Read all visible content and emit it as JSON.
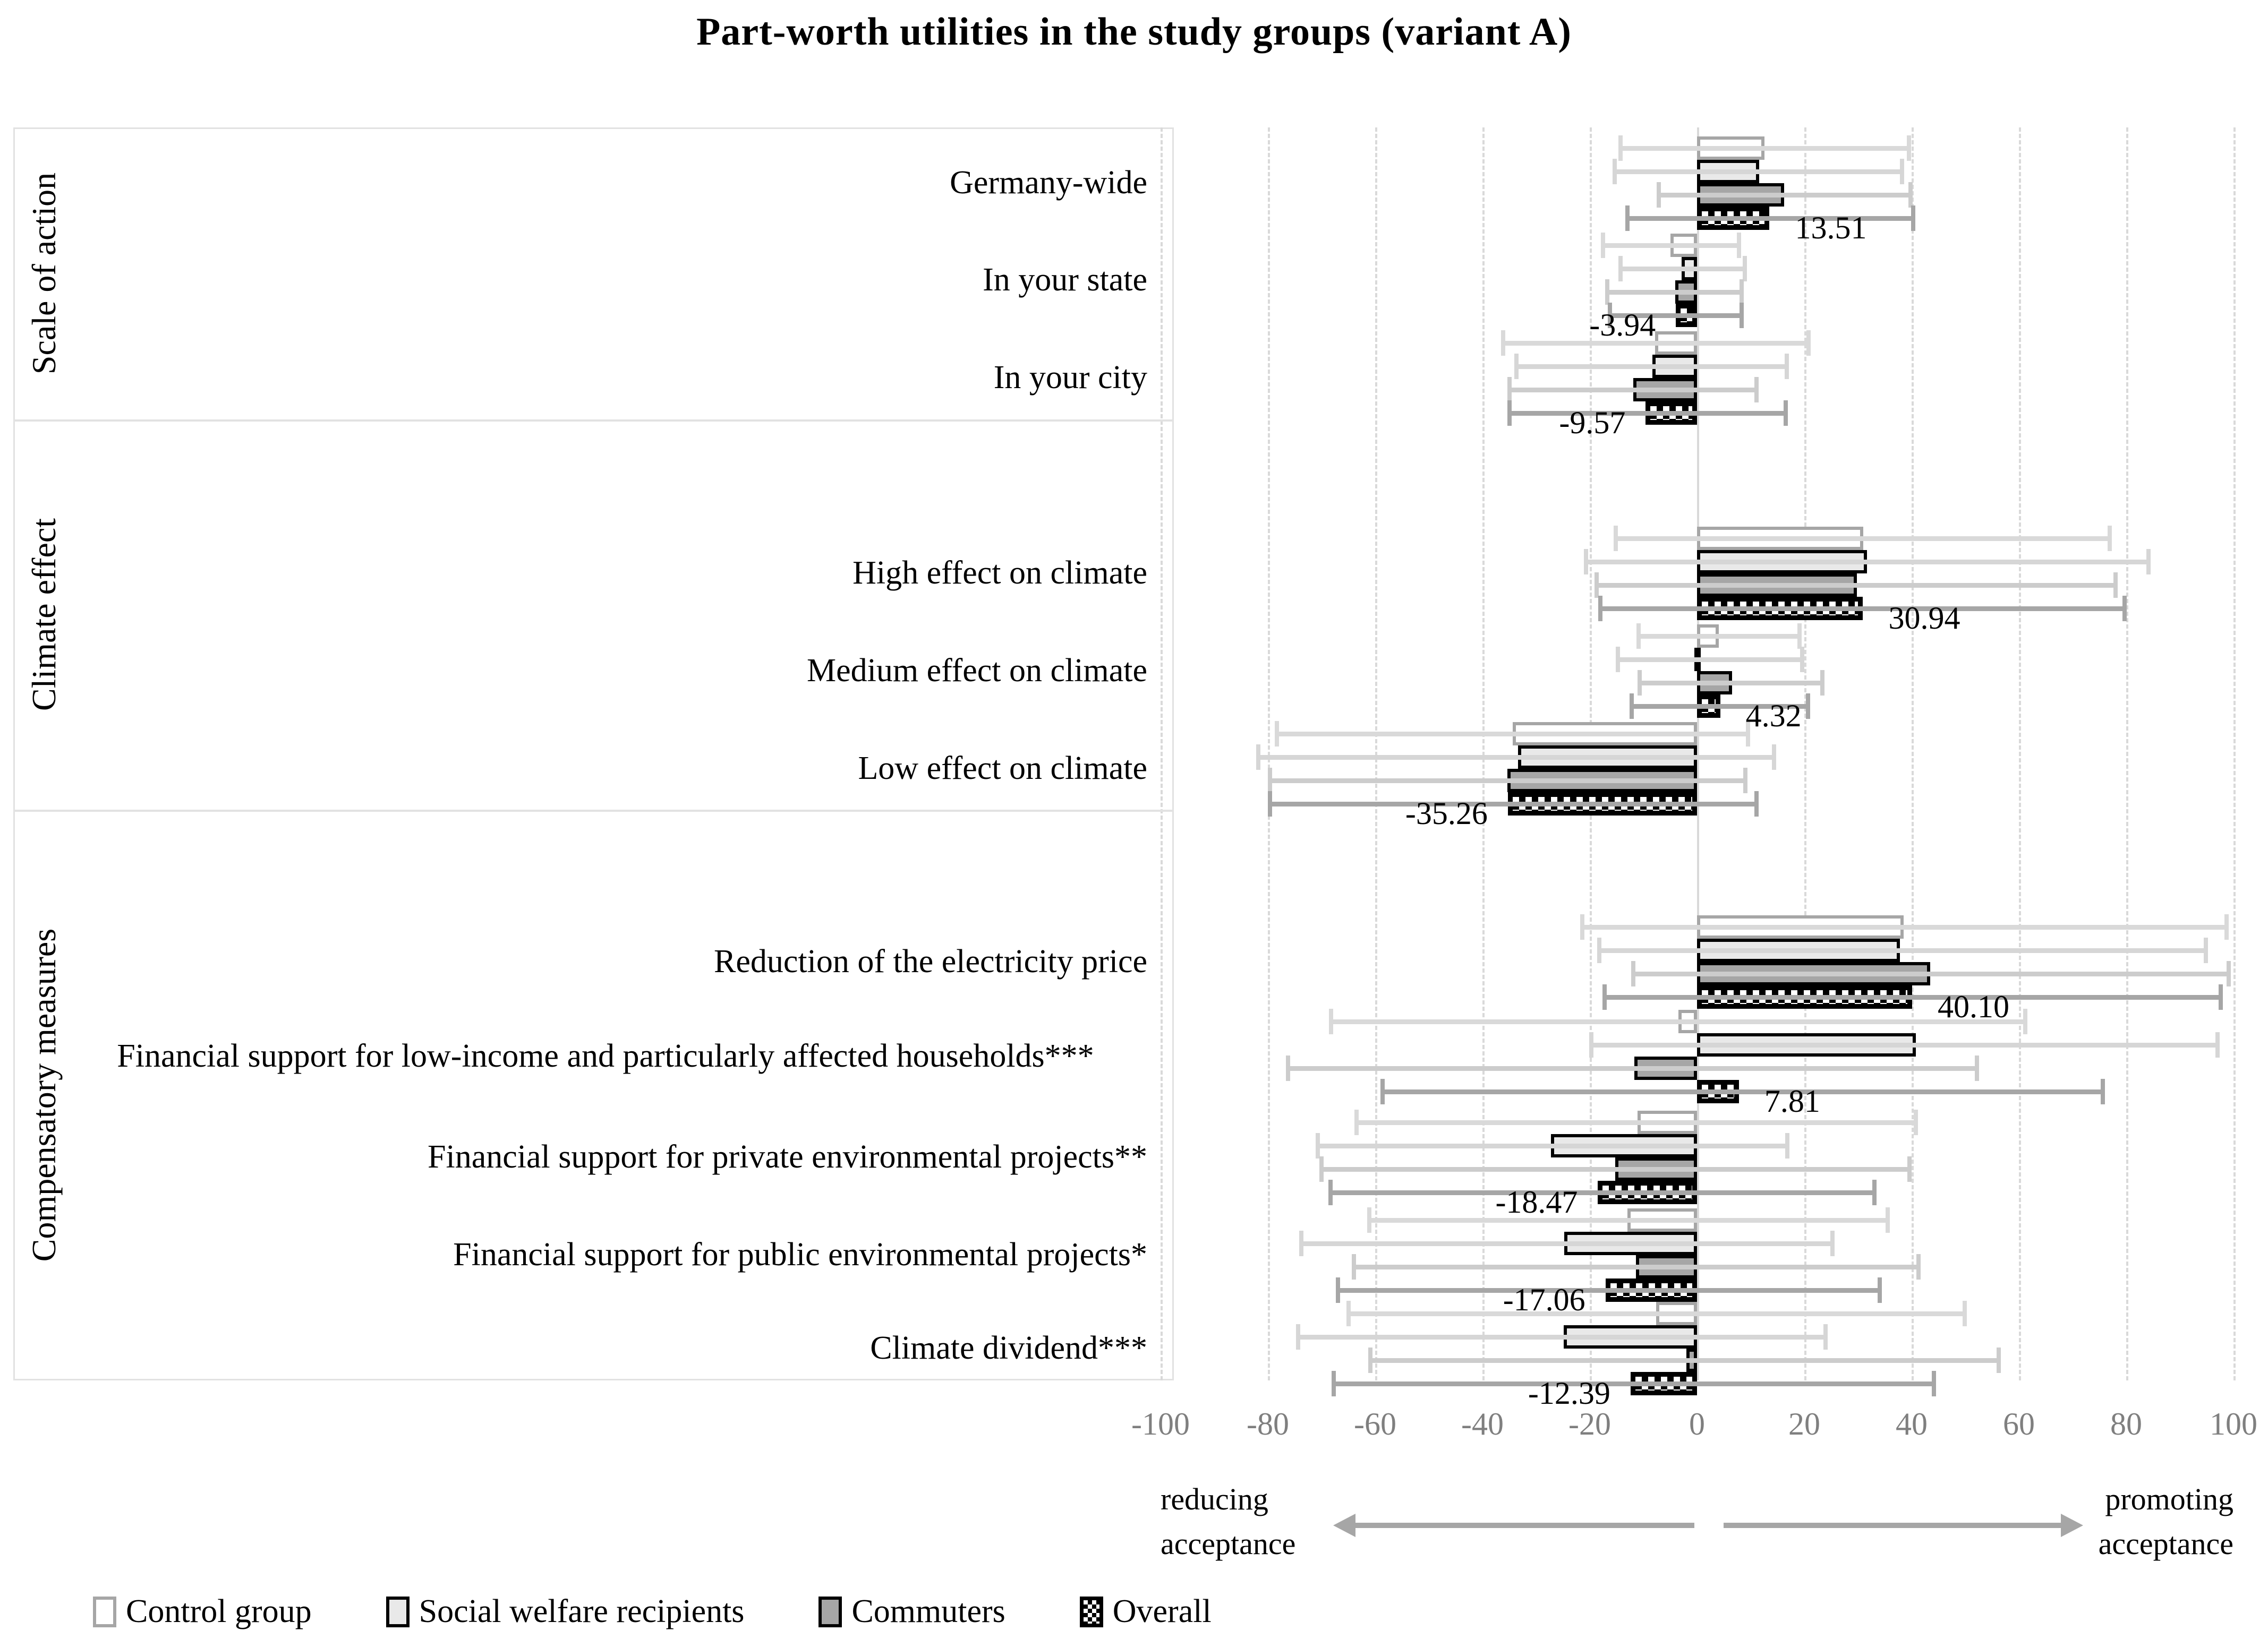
{
  "title": "Part-worth utilities in the study groups (variant A)",
  "axis": {
    "xlim": [
      -100,
      100
    ],
    "ticks": [
      -100,
      -80,
      -60,
      -40,
      -20,
      0,
      20,
      40,
      60,
      80,
      100
    ],
    "left_label": "reducing acceptance",
    "right_label": "promoting acceptance"
  },
  "legend": [
    {
      "label": "Control group",
      "series": "control"
    },
    {
      "label": "Social welfare recipients",
      "series": "social_welfare"
    },
    {
      "label": "Commuters",
      "series": "commuters"
    },
    {
      "label": "Overall",
      "series": "overall"
    }
  ],
  "colors": {
    "control_fill": "#ffffff",
    "control_border": "#a6a6a6",
    "social_welfare_fill": "#e9e9e9",
    "commuters_fill": "#a6a6a6",
    "bar_border": "#000000",
    "gridline": "#d9d9d9",
    "arrow": "#a6a6a6",
    "tick_text": "#7f7f7f",
    "ci_control": "#d9d9d9",
    "ci_social_welfare": "#d6d6d6",
    "ci_commuters": "#cccccc",
    "ci_overall": "#a6a6a6"
  },
  "chart_data": {
    "type": "bar",
    "orientation": "horizontal",
    "title": "Part-worth utilities in the study groups (variant A)",
    "series_names": [
      "Control group",
      "Social welfare recipients",
      "Commuters",
      "Overall"
    ],
    "xlim": [
      -100,
      100
    ],
    "grid": true,
    "legend_position": "bottom",
    "sections": [
      {
        "label": "Scale of action",
        "rows": [
          {
            "category": "Germany-wide",
            "values": {
              "control": 12.6,
              "social_welfare": 11.6,
              "commuters": 16.2,
              "overall": 13.51
            },
            "ci": {
              "control": [
                -14.3,
                39.5
              ],
              "social_welfare": [
                -15.3,
                38.2
              ],
              "commuters": [
                -7.1,
                39.8
              ],
              "overall": [
                -13.0,
                40.3
              ]
            },
            "overall_label": "13.51"
          },
          {
            "category": "In your state",
            "values": {
              "control": -5.0,
              "social_welfare": -2.9,
              "commuters": -4.1,
              "overall": -3.94
            },
            "ci": {
              "control": [
                -17.5,
                7.8
              ],
              "social_welfare": [
                -14.3,
                8.9
              ],
              "commuters": [
                -16.7,
                8.3
              ],
              "overall": [
                -16.2,
                8.3
              ]
            },
            "overall_label": "-3.94"
          },
          {
            "category": "In your city",
            "values": {
              "control": -7.8,
              "social_welfare": -8.3,
              "commuters": -11.9,
              "overall": -9.57
            },
            "ci": {
              "control": [
                -36.1,
                20.8
              ],
              "social_welfare": [
                -33.7,
                16.7
              ],
              "commuters": [
                -35.0,
                11.1
              ],
              "overall": [
                -35.0,
                16.5
              ]
            },
            "overall_label": "-9.57"
          }
        ]
      },
      {
        "label": "Climate effect",
        "rows": [
          {
            "category": "High effect on climate",
            "values": {
              "control": 31.0,
              "social_welfare": 31.7,
              "commuters": 29.8,
              "overall": 30.94
            },
            "ci": {
              "control": [
                -15.1,
                76.9
              ],
              "social_welfare": [
                -20.7,
                84.2
              ],
              "commuters": [
                -18.7,
                78.0
              ],
              "overall": [
                -18.0,
                79.7
              ]
            },
            "overall_label": "30.94"
          },
          {
            "category": "Medium effect on climate",
            "values": {
              "control": 4.1,
              "social_welfare": -0.5,
              "commuters": 6.5,
              "overall": 4.32
            },
            "ci": {
              "control": [
                -10.9,
                19.1
              ],
              "social_welfare": [
                -14.8,
                19.6
              ],
              "commuters": [
                -10.7,
                23.4
              ],
              "overall": [
                -12.2,
                20.7
              ]
            },
            "overall_label": "4.32"
          },
          {
            "category": "Low effect on climate",
            "values": {
              "control": -34.4,
              "social_welfare": -33.4,
              "commuters": -35.3,
              "overall": -35.26
            },
            "ci": {
              "control": [
                -78.3,
                9.5
              ],
              "social_welfare": [
                -81.8,
                14.4
              ],
              "commuters": [
                -79.6,
                9.0
              ],
              "overall": [
                -79.6,
                11.1
              ]
            },
            "overall_label": "-35.26"
          }
        ]
      },
      {
        "label": "Compensatory measures",
        "rows": [
          {
            "category": "Reduction of the electricity price",
            "values": {
              "control": 38.5,
              "social_welfare": 37.8,
              "commuters": 43.5,
              "overall": 40.1
            },
            "ci": {
              "control": [
                -21.4,
                98.7
              ],
              "social_welfare": [
                -18.2,
                94.9
              ],
              "commuters": [
                -11.9,
                99.1
              ],
              "overall": [
                -17.2,
                97.6
              ]
            },
            "overall_label": "40.10"
          },
          {
            "category": "Financial support for low-income and particularly affected households***",
            "align": "center",
            "values": {
              "control": -3.5,
              "social_welfare": 40.8,
              "commuters": -11.7,
              "overall": 7.81
            },
            "ci": {
              "control": [
                -68.2,
                61.2
              ],
              "social_welfare": [
                -19.7,
                97.0
              ],
              "commuters": [
                -76.2,
                52.2
              ],
              "overall": [
                -58.6,
                75.6
              ]
            },
            "overall_label": "7.81"
          },
          {
            "category": "Financial support for private environmental projects**",
            "values": {
              "control": -11.1,
              "social_welfare": -27.2,
              "commuters": -15.2,
              "overall": -18.47
            },
            "ci": {
              "control": [
                -63.5,
                40.8
              ],
              "social_welfare": [
                -70.7,
                16.8
              ],
              "commuters": [
                -70.0,
                39.6
              ],
              "overall": [
                -68.3,
                33.1
              ]
            },
            "overall_label": "-18.47"
          },
          {
            "category": "Financial support for public environmental projects*",
            "values": {
              "control": -13.0,
              "social_welfare": -24.8,
              "commuters": -11.4,
              "overall": -17.06
            },
            "ci": {
              "control": [
                -61.1,
                35.5
              ],
              "social_welfare": [
                -73.8,
                25.2
              ],
              "commuters": [
                -64.0,
                41.3
              ],
              "overall": [
                -66.9,
                34.1
              ]
            },
            "overall_label": "-17.06"
          },
          {
            "category": "Climate dividend***",
            "values": {
              "control": -7.6,
              "social_welfare": -24.9,
              "commuters": -2.0,
              "overall": -12.39
            },
            "ci": {
              "control": [
                -65.0,
                49.9
              ],
              "social_welfare": [
                -74.4,
                24.0
              ],
              "commuters": [
                -60.9,
                56.2
              ],
              "overall": [
                -67.7,
                44.2
              ]
            },
            "overall_label": "-12.39"
          }
        ]
      }
    ]
  }
}
